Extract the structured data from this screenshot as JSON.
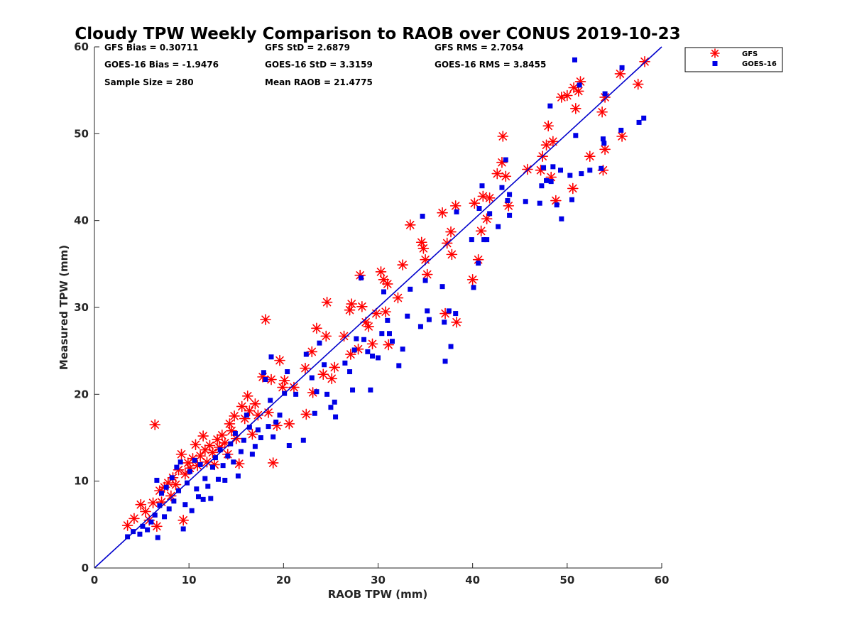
{
  "chart_data": {
    "type": "scatter",
    "title": "Cloudy TPW Weekly Comparison to RAOB over CONUS 2019-10-23",
    "xlabel": "RAOB TPW (mm)",
    "ylabel": "Measured TPW (mm)",
    "xlim": [
      0,
      60
    ],
    "ylim": [
      0,
      60
    ],
    "xticks": [
      0,
      10,
      20,
      30,
      40,
      50,
      60
    ],
    "yticks": [
      0,
      10,
      20,
      30,
      40,
      50,
      60
    ],
    "grid": false,
    "legend_position": "top-right-outside",
    "stats": [
      [
        "GFS Bias = 0.30711",
        "GFS StD = 2.6879",
        "GFS RMS = 2.7054"
      ],
      [
        "GOES-16 Bias = -1.9476",
        "GOES-16 StD = 3.3159",
        "GOES-16 RMS = 3.8455"
      ],
      [
        "Sample Size = 280",
        "Mean RAOB = 21.4775"
      ]
    ],
    "reference_line": {
      "from": [
        0,
        0
      ],
      "to": [
        60,
        60
      ],
      "color": "#0000cc"
    },
    "series": [
      {
        "name": "GFS",
        "marker": "asterisk",
        "color": "#ff0000",
        "points": [
          [
            3.5,
            4.9
          ],
          [
            4.2,
            5.7
          ],
          [
            4.9,
            7.3
          ],
          [
            5.4,
            6.5
          ],
          [
            5.8,
            5.5
          ],
          [
            6.2,
            7.5
          ],
          [
            6.4,
            16.5
          ],
          [
            6.6,
            4.8
          ],
          [
            6.9,
            8.9
          ],
          [
            7.1,
            7.6
          ],
          [
            7.4,
            9.3
          ],
          [
            7.8,
            9.8
          ],
          [
            8.1,
            8.3
          ],
          [
            8.3,
            10.4
          ],
          [
            8.6,
            9.6
          ],
          [
            8.9,
            11.3
          ],
          [
            9.2,
            13.1
          ],
          [
            9.4,
            5.5
          ],
          [
            9.6,
            10.8
          ],
          [
            9.9,
            12.1
          ],
          [
            10.1,
            11.5
          ],
          [
            10.4,
            12.6
          ],
          [
            10.7,
            14.2
          ],
          [
            10.9,
            11.8
          ],
          [
            11.2,
            12.9
          ],
          [
            11.5,
            15.2
          ],
          [
            11.7,
            13.6
          ],
          [
            11.9,
            12.2
          ],
          [
            12.2,
            14.1
          ],
          [
            12.5,
            13.3
          ],
          [
            12.7,
            11.9
          ],
          [
            13.0,
            14.8
          ],
          [
            13.2,
            13.9
          ],
          [
            13.5,
            15.3
          ],
          [
            13.8,
            14.4
          ],
          [
            14.1,
            13.1
          ],
          [
            14.3,
            16.6
          ],
          [
            14.5,
            15.8
          ],
          [
            14.8,
            17.5
          ],
          [
            15.0,
            14.9
          ],
          [
            15.3,
            12.0
          ],
          [
            15.6,
            18.6
          ],
          [
            15.9,
            17.2
          ],
          [
            16.2,
            19.8
          ],
          [
            16.4,
            18.1
          ],
          [
            16.7,
            15.4
          ],
          [
            17.0,
            18.9
          ],
          [
            17.3,
            17.6
          ],
          [
            17.8,
            22.0
          ],
          [
            18.1,
            28.6
          ],
          [
            18.4,
            17.9
          ],
          [
            18.7,
            21.7
          ],
          [
            18.9,
            12.1
          ],
          [
            19.3,
            16.4
          ],
          [
            19.6,
            23.9
          ],
          [
            19.9,
            20.8
          ],
          [
            20.1,
            21.6
          ],
          [
            20.6,
            16.6
          ],
          [
            21.1,
            20.8
          ],
          [
            22.3,
            23.0
          ],
          [
            22.4,
            17.7
          ],
          [
            23.0,
            24.9
          ],
          [
            23.1,
            20.2
          ],
          [
            23.5,
            27.6
          ],
          [
            24.2,
            22.3
          ],
          [
            24.5,
            26.7
          ],
          [
            24.6,
            30.6
          ],
          [
            25.1,
            21.8
          ],
          [
            25.4,
            23.1
          ],
          [
            26.4,
            26.7
          ],
          [
            27.0,
            29.7
          ],
          [
            27.1,
            24.6
          ],
          [
            27.2,
            30.4
          ],
          [
            27.9,
            25.2
          ],
          [
            28.1,
            33.7
          ],
          [
            28.3,
            30.1
          ],
          [
            28.7,
            28.3
          ],
          [
            29.0,
            27.8
          ],
          [
            29.4,
            25.8
          ],
          [
            29.8,
            29.3
          ],
          [
            30.3,
            34.1
          ],
          [
            30.6,
            33.2
          ],
          [
            30.8,
            29.5
          ],
          [
            31.0,
            32.7
          ],
          [
            31.1,
            25.7
          ],
          [
            32.1,
            31.1
          ],
          [
            32.6,
            34.9
          ],
          [
            33.4,
            39.5
          ],
          [
            34.6,
            37.5
          ],
          [
            34.8,
            36.8
          ],
          [
            35.0,
            35.5
          ],
          [
            35.2,
            33.8
          ],
          [
            36.8,
            40.9
          ],
          [
            37.1,
            29.3
          ],
          [
            37.3,
            37.4
          ],
          [
            37.7,
            38.7
          ],
          [
            37.8,
            36.1
          ],
          [
            38.3,
            28.3
          ],
          [
            38.2,
            41.7
          ],
          [
            40.0,
            33.2
          ],
          [
            40.2,
            42.0
          ],
          [
            40.6,
            35.5
          ],
          [
            40.9,
            38.8
          ],
          [
            41.1,
            42.8
          ],
          [
            41.5,
            40.2
          ],
          [
            41.8,
            42.6
          ],
          [
            42.6,
            45.4
          ],
          [
            43.1,
            46.7
          ],
          [
            43.2,
            49.7
          ],
          [
            43.5,
            45.1
          ],
          [
            43.8,
            41.7
          ],
          [
            45.8,
            45.9
          ],
          [
            47.2,
            45.8
          ],
          [
            47.4,
            47.4
          ],
          [
            47.8,
            48.7
          ],
          [
            48.0,
            50.9
          ],
          [
            48.3,
            45.0
          ],
          [
            48.5,
            49.1
          ],
          [
            48.8,
            42.3
          ],
          [
            49.4,
            54.2
          ],
          [
            50.0,
            54.4
          ],
          [
            50.6,
            43.7
          ],
          [
            50.7,
            55.3
          ],
          [
            50.9,
            52.9
          ],
          [
            51.2,
            54.9
          ],
          [
            51.4,
            56.0
          ],
          [
            52.4,
            47.4
          ],
          [
            53.7,
            52.5
          ],
          [
            53.8,
            45.8
          ],
          [
            54.0,
            48.2
          ],
          [
            54.0,
            54.2
          ],
          [
            55.6,
            56.9
          ],
          [
            55.8,
            49.7
          ],
          [
            57.5,
            55.7
          ],
          [
            58.2,
            58.3
          ]
        ]
      },
      {
        "name": "GOES-16",
        "marker": "square",
        "color": "#0000e6",
        "points": [
          [
            3.5,
            3.6
          ],
          [
            4.1,
            4.2
          ],
          [
            4.8,
            3.9
          ],
          [
            5.1,
            4.8
          ],
          [
            5.6,
            4.4
          ],
          [
            6.0,
            5.3
          ],
          [
            6.4,
            6.1
          ],
          [
            6.6,
            10.1
          ],
          [
            6.7,
            3.5
          ],
          [
            6.9,
            7.2
          ],
          [
            7.1,
            8.6
          ],
          [
            7.4,
            5.9
          ],
          [
            7.6,
            9.3
          ],
          [
            7.9,
            6.8
          ],
          [
            8.2,
            10.4
          ],
          [
            8.4,
            7.7
          ],
          [
            8.7,
            11.6
          ],
          [
            8.9,
            8.9
          ],
          [
            9.1,
            12.2
          ],
          [
            9.4,
            4.5
          ],
          [
            9.6,
            7.3
          ],
          [
            9.8,
            9.8
          ],
          [
            10.1,
            11.1
          ],
          [
            10.3,
            6.6
          ],
          [
            10.6,
            12.4
          ],
          [
            10.8,
            9.1
          ],
          [
            11.0,
            8.2
          ],
          [
            11.2,
            11.9
          ],
          [
            11.5,
            7.9
          ],
          [
            11.7,
            10.3
          ],
          [
            12.0,
            9.4
          ],
          [
            12.3,
            8.0
          ],
          [
            12.5,
            11.6
          ],
          [
            12.8,
            12.7
          ],
          [
            13.1,
            10.2
          ],
          [
            13.3,
            13.6
          ],
          [
            13.6,
            11.8
          ],
          [
            13.8,
            10.1
          ],
          [
            14.1,
            12.9
          ],
          [
            14.4,
            14.3
          ],
          [
            14.7,
            12.2
          ],
          [
            14.9,
            15.5
          ],
          [
            15.2,
            10.6
          ],
          [
            15.5,
            13.4
          ],
          [
            15.8,
            14.7
          ],
          [
            16.1,
            17.6
          ],
          [
            16.4,
            16.2
          ],
          [
            16.7,
            13.1
          ],
          [
            17.0,
            14.0
          ],
          [
            17.3,
            15.9
          ],
          [
            17.6,
            15.0
          ],
          [
            17.9,
            22.5
          ],
          [
            18.1,
            21.7
          ],
          [
            18.4,
            16.3
          ],
          [
            18.6,
            19.3
          ],
          [
            18.7,
            24.3
          ],
          [
            18.9,
            15.1
          ],
          [
            19.2,
            16.8
          ],
          [
            19.6,
            17.6
          ],
          [
            20.1,
            20.1
          ],
          [
            20.4,
            22.6
          ],
          [
            20.6,
            14.1
          ],
          [
            21.3,
            20.0
          ],
          [
            22.1,
            14.7
          ],
          [
            22.4,
            24.6
          ],
          [
            23.0,
            21.9
          ],
          [
            23.3,
            17.8
          ],
          [
            23.5,
            20.3
          ],
          [
            23.8,
            25.9
          ],
          [
            24.3,
            23.4
          ],
          [
            24.6,
            20.0
          ],
          [
            25.0,
            18.5
          ],
          [
            25.4,
            19.1
          ],
          [
            25.5,
            17.4
          ],
          [
            26.5,
            23.6
          ],
          [
            27.0,
            22.6
          ],
          [
            27.3,
            20.5
          ],
          [
            27.5,
            25.1
          ],
          [
            27.7,
            26.4
          ],
          [
            28.2,
            33.4
          ],
          [
            28.5,
            26.3
          ],
          [
            28.9,
            24.9
          ],
          [
            29.2,
            20.5
          ],
          [
            29.4,
            24.4
          ],
          [
            30.0,
            24.2
          ],
          [
            30.4,
            27.0
          ],
          [
            30.6,
            31.8
          ],
          [
            31.0,
            28.5
          ],
          [
            31.2,
            27.0
          ],
          [
            31.5,
            26.1
          ],
          [
            32.2,
            23.3
          ],
          [
            32.6,
            25.2
          ],
          [
            33.1,
            29.0
          ],
          [
            33.4,
            32.1
          ],
          [
            34.5,
            27.8
          ],
          [
            34.7,
            40.5
          ],
          [
            35.0,
            33.1
          ],
          [
            35.2,
            29.6
          ],
          [
            35.4,
            28.6
          ],
          [
            36.8,
            32.4
          ],
          [
            37.0,
            28.3
          ],
          [
            37.1,
            23.8
          ],
          [
            37.5,
            29.6
          ],
          [
            37.7,
            25.5
          ],
          [
            38.2,
            29.3
          ],
          [
            38.3,
            41.0
          ],
          [
            39.9,
            37.8
          ],
          [
            40.1,
            32.3
          ],
          [
            40.6,
            35.1
          ],
          [
            40.7,
            41.4
          ],
          [
            41.0,
            44.0
          ],
          [
            41.2,
            37.8
          ],
          [
            41.5,
            37.8
          ],
          [
            41.8,
            40.8
          ],
          [
            42.7,
            39.3
          ],
          [
            43.1,
            43.8
          ],
          [
            43.5,
            47.0
          ],
          [
            43.7,
            42.3
          ],
          [
            43.9,
            40.6
          ],
          [
            43.9,
            43.0
          ],
          [
            45.6,
            42.2
          ],
          [
            47.1,
            42.0
          ],
          [
            47.3,
            44.0
          ],
          [
            47.5,
            46.1
          ],
          [
            47.8,
            44.6
          ],
          [
            48.2,
            53.2
          ],
          [
            48.3,
            44.5
          ],
          [
            48.5,
            46.2
          ],
          [
            48.9,
            41.8
          ],
          [
            49.3,
            45.8
          ],
          [
            49.4,
            40.2
          ],
          [
            50.3,
            45.2
          ],
          [
            50.5,
            42.4
          ],
          [
            50.8,
            58.5
          ],
          [
            50.9,
            49.8
          ],
          [
            51.3,
            55.6
          ],
          [
            51.5,
            45.4
          ],
          [
            52.4,
            45.8
          ],
          [
            53.6,
            46.0
          ],
          [
            53.8,
            49.4
          ],
          [
            53.9,
            48.9
          ],
          [
            54.0,
            54.6
          ],
          [
            55.7,
            50.4
          ],
          [
            55.8,
            57.6
          ],
          [
            57.6,
            51.3
          ],
          [
            58.1,
            51.8
          ]
        ]
      }
    ]
  }
}
